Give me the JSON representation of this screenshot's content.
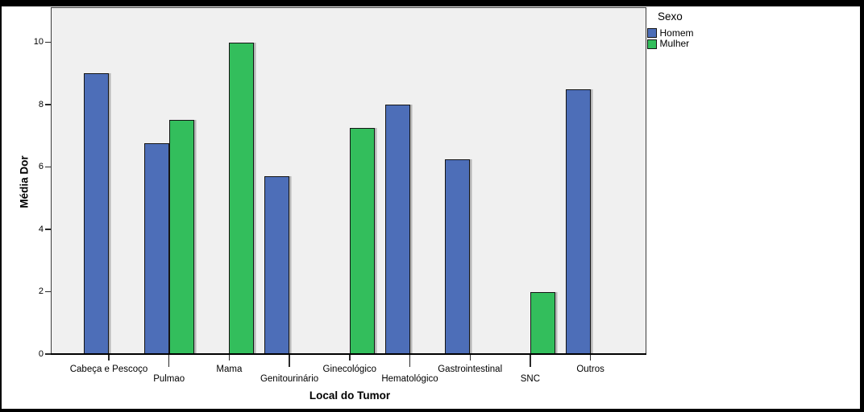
{
  "chart_data": {
    "type": "bar",
    "title": "",
    "xlabel": "Local do Tumor",
    "ylabel": "Média Dor",
    "legend_title": "Sexo",
    "legend_position": "top-right-outside",
    "grid": false,
    "plot_background": "#F0F0F0",
    "bar_border_color": "#141414",
    "categories": [
      "Cabeça e Pescoço",
      "Pulmao",
      "Mama",
      "Genitourinário",
      "Ginecológico",
      "Hematológico",
      "Gastrointestinal",
      "SNC",
      "Outros"
    ],
    "series": [
      {
        "name": "Homem",
        "color": "#4D6EB8",
        "values": [
          9.0,
          6.75,
          null,
          5.7,
          null,
          8.0,
          6.25,
          null,
          8.5
        ]
      },
      {
        "name": "Mulher",
        "color": "#33BE5C",
        "values": [
          null,
          7.5,
          10.0,
          null,
          7.25,
          null,
          null,
          2.0,
          null
        ]
      }
    ],
    "ylim": [
      0,
      11.2
    ],
    "yticks": [
      0,
      2,
      4,
      6,
      8,
      10
    ]
  }
}
